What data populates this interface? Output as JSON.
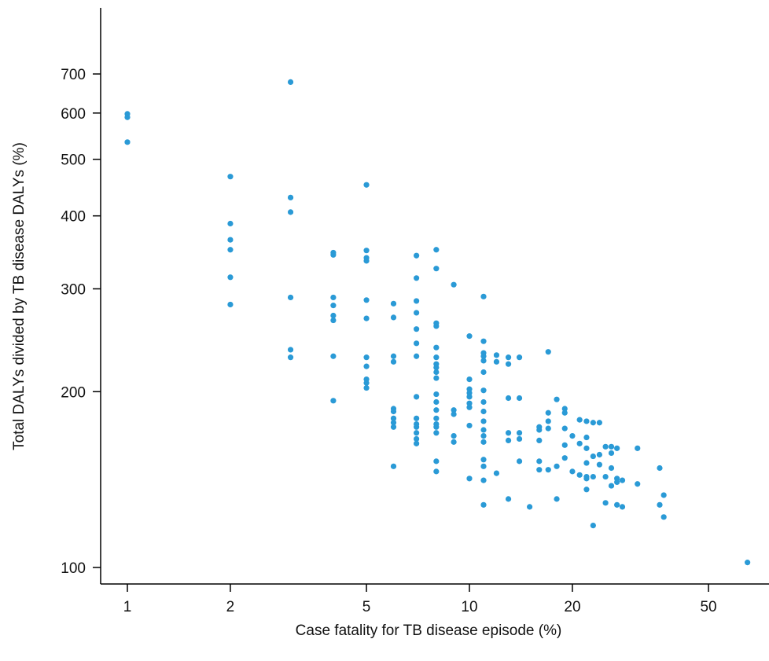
{
  "chart_data": {
    "type": "scatter",
    "title": "",
    "xlabel": "Case fatality for TB disease episode (%)",
    "ylabel": "Total DALYs divided by TB disease DALYs (%)",
    "x_scale": "log",
    "y_scale": "log",
    "xlim": [
      0.8,
      80
    ],
    "ylim": [
      95,
      720
    ],
    "x_ticks": [
      {
        "value": 1,
        "label": "1"
      },
      {
        "value": 2,
        "label": "2"
      },
      {
        "value": 5,
        "label": "5"
      },
      {
        "value": 10,
        "label": "10"
      },
      {
        "value": 20,
        "label": "20"
      },
      {
        "value": 50,
        "label": "50"
      }
    ],
    "y_ticks": [
      {
        "value": 100,
        "label": "100"
      },
      {
        "value": 200,
        "label": "200"
      },
      {
        "value": 300,
        "label": "300"
      },
      {
        "value": 400,
        "label": "400"
      },
      {
        "value": 500,
        "label": "500"
      },
      {
        "value": 600,
        "label": "600"
      },
      {
        "value": 700,
        "label": "700"
      }
    ],
    "grid": false,
    "legend": "none",
    "point_color": "#2A9AD6",
    "series": [
      {
        "points": [
          [
            1,
            598
          ],
          [
            1,
            590
          ],
          [
            1,
            535
          ],
          [
            2,
            467
          ],
          [
            2,
            388
          ],
          [
            2,
            364
          ],
          [
            2,
            350
          ],
          [
            2,
            314
          ],
          [
            2,
            282
          ],
          [
            3,
            678
          ],
          [
            3,
            430
          ],
          [
            3,
            406
          ],
          [
            3,
            290
          ],
          [
            3,
            236
          ],
          [
            3,
            229
          ],
          [
            4,
            346
          ],
          [
            4,
            343
          ],
          [
            4,
            290
          ],
          [
            4,
            281
          ],
          [
            4,
            270
          ],
          [
            4,
            265
          ],
          [
            4,
            230
          ],
          [
            4,
            193
          ],
          [
            5,
            452
          ],
          [
            5,
            349
          ],
          [
            5,
            339
          ],
          [
            5,
            335
          ],
          [
            5,
            287
          ],
          [
            5,
            267
          ],
          [
            5,
            229
          ],
          [
            5,
            221
          ],
          [
            5,
            210
          ],
          [
            5,
            207
          ],
          [
            5,
            203
          ],
          [
            6,
            283
          ],
          [
            6,
            268
          ],
          [
            6,
            230
          ],
          [
            6,
            225
          ],
          [
            6,
            187
          ],
          [
            6,
            185
          ],
          [
            6,
            180
          ],
          [
            6,
            177
          ],
          [
            6,
            174
          ],
          [
            6,
            149
          ],
          [
            7,
            342
          ],
          [
            7,
            313
          ],
          [
            7,
            286
          ],
          [
            7,
            273
          ],
          [
            7,
            256
          ],
          [
            7,
            242
          ],
          [
            7,
            230
          ],
          [
            7,
            196
          ],
          [
            7,
            180
          ],
          [
            7,
            176
          ],
          [
            7,
            174
          ],
          [
            7,
            170
          ],
          [
            7,
            166
          ],
          [
            7,
            163
          ],
          [
            8,
            350
          ],
          [
            8,
            325
          ],
          [
            8,
            262
          ],
          [
            8,
            259
          ],
          [
            8,
            238
          ],
          [
            8,
            229
          ],
          [
            8,
            223
          ],
          [
            8,
            220
          ],
          [
            8,
            216
          ],
          [
            8,
            211
          ],
          [
            8,
            198
          ],
          [
            8,
            192
          ],
          [
            8,
            186
          ],
          [
            8,
            180
          ],
          [
            8,
            176
          ],
          [
            8,
            174
          ],
          [
            8,
            170
          ],
          [
            8,
            152
          ],
          [
            8,
            146
          ],
          [
            9,
            305
          ],
          [
            9,
            186
          ],
          [
            9,
            183
          ],
          [
            9,
            168
          ],
          [
            9,
            164
          ],
          [
            10,
            249
          ],
          [
            10,
            210
          ],
          [
            10,
            202
          ],
          [
            10,
            199
          ],
          [
            10,
            196
          ],
          [
            10,
            191
          ],
          [
            10,
            188
          ],
          [
            10,
            175
          ],
          [
            10,
            142
          ],
          [
            11,
            291
          ],
          [
            11,
            244
          ],
          [
            11,
            233
          ],
          [
            11,
            230
          ],
          [
            11,
            226
          ],
          [
            11,
            216
          ],
          [
            11,
            201
          ],
          [
            11,
            192
          ],
          [
            11,
            185
          ],
          [
            11,
            178
          ],
          [
            11,
            172
          ],
          [
            11,
            168
          ],
          [
            11,
            164
          ],
          [
            11,
            153
          ],
          [
            11,
            149
          ],
          [
            11,
            141
          ],
          [
            11,
            128
          ],
          [
            12,
            231
          ],
          [
            12,
            225
          ],
          [
            12,
            145
          ],
          [
            13,
            229
          ],
          [
            13,
            223
          ],
          [
            13,
            195
          ],
          [
            13,
            170
          ],
          [
            13,
            165
          ],
          [
            13,
            131
          ],
          [
            14,
            229
          ],
          [
            14,
            195
          ],
          [
            14,
            170
          ],
          [
            14,
            166
          ],
          [
            14,
            152
          ],
          [
            15,
            127
          ],
          [
            16,
            174
          ],
          [
            16,
            172
          ],
          [
            16,
            165
          ],
          [
            16,
            152
          ],
          [
            16,
            147
          ],
          [
            17,
            234
          ],
          [
            17,
            184
          ],
          [
            17,
            178
          ],
          [
            17,
            173
          ],
          [
            17,
            147
          ],
          [
            18,
            194
          ],
          [
            18,
            149
          ],
          [
            18,
            131
          ],
          [
            19,
            187
          ],
          [
            19,
            184
          ],
          [
            19,
            173
          ],
          [
            19,
            162
          ],
          [
            19,
            154
          ],
          [
            20,
            168
          ],
          [
            20,
            146
          ],
          [
            21,
            179
          ],
          [
            21,
            163
          ],
          [
            21,
            144
          ],
          [
            22,
            178
          ],
          [
            22,
            167
          ],
          [
            22,
            160
          ],
          [
            22,
            151
          ],
          [
            22,
            143
          ],
          [
            22,
            142
          ],
          [
            22,
            136
          ],
          [
            23,
            177
          ],
          [
            23,
            155
          ],
          [
            23,
            143
          ],
          [
            23,
            118
          ],
          [
            24,
            177
          ],
          [
            24,
            156
          ],
          [
            24,
            150
          ],
          [
            25,
            161
          ],
          [
            25,
            143
          ],
          [
            25,
            129
          ],
          [
            26,
            161
          ],
          [
            26,
            157
          ],
          [
            26,
            148
          ],
          [
            26,
            138
          ],
          [
            27,
            160
          ],
          [
            27,
            142
          ],
          [
            27,
            140
          ],
          [
            27,
            128
          ],
          [
            28,
            141
          ],
          [
            28,
            127
          ],
          [
            31,
            160
          ],
          [
            31,
            139
          ],
          [
            36,
            148
          ],
          [
            36,
            128
          ],
          [
            37,
            133
          ],
          [
            37,
            122
          ],
          [
            65,
            102
          ]
        ]
      }
    ]
  }
}
